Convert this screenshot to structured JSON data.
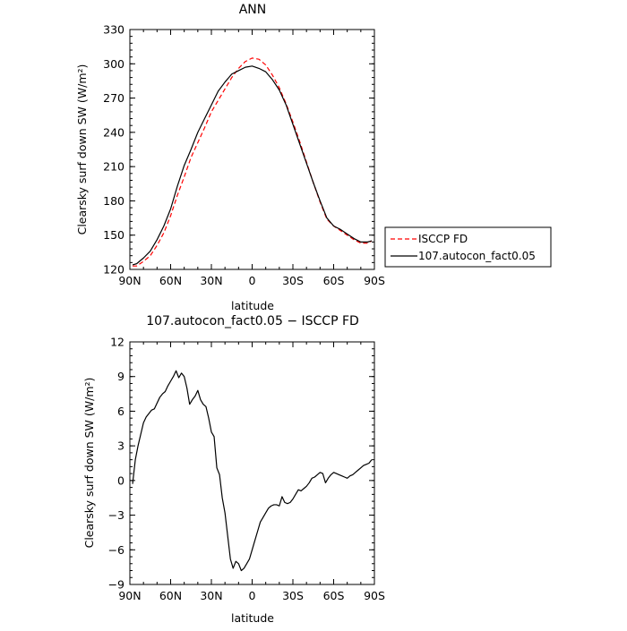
{
  "chart_data": [
    {
      "type": "line",
      "title": "ANN",
      "xlabel": "latitude",
      "ylabel": "Clearsky surf down SW (W/m²)",
      "xlim": [
        90,
        -90
      ],
      "ylim": [
        120,
        330
      ],
      "x_ticks": [
        90,
        60,
        30,
        0,
        -30,
        -60,
        -90
      ],
      "x_tick_labels": [
        "90N",
        "60N",
        "30N",
        "0",
        "30S",
        "60S",
        "90S"
      ],
      "y_ticks": [
        120,
        150,
        180,
        210,
        240,
        270,
        300,
        330
      ],
      "y_tick_labels": [
        "120",
        "150",
        "180",
        "210",
        "240",
        "270",
        "300",
        "330"
      ],
      "legend_position": "outside-right",
      "series": [
        {
          "name": "ISCCP FD",
          "color": "#ff0000",
          "dash": "dashed",
          "x": [
            88,
            85,
            80,
            75,
            70,
            65,
            60,
            55,
            50,
            45,
            40,
            35,
            30,
            25,
            20,
            15,
            10,
            5,
            0,
            -5,
            -10,
            -15,
            -20,
            -25,
            -30,
            -35,
            -40,
            -45,
            -50,
            -55,
            -60,
            -65,
            -70,
            -75,
            -80,
            -85,
            -88
          ],
          "y": [
            123,
            123,
            127,
            132,
            141,
            152,
            167,
            185,
            201,
            218,
            231,
            244,
            258,
            268,
            278,
            288,
            296,
            302,
            305,
            304,
            299,
            290,
            279,
            265,
            249,
            232,
            214,
            196,
            179,
            164,
            158,
            154,
            150,
            146,
            143,
            143,
            145
          ]
        },
        {
          "name": "107.autocon_fact0.05",
          "color": "#000000",
          "dash": "solid",
          "x": [
            88,
            85,
            80,
            75,
            70,
            65,
            60,
            55,
            50,
            45,
            40,
            35,
            30,
            25,
            20,
            15,
            10,
            5,
            0,
            -5,
            -10,
            -15,
            -20,
            -25,
            -30,
            -35,
            -40,
            -45,
            -50,
            -55,
            -60,
            -65,
            -70,
            -75,
            -80,
            -85,
            -88
          ],
          "y": [
            124,
            125,
            130,
            136,
            146,
            158,
            173,
            193,
            211,
            225,
            240,
            252,
            264,
            276,
            284,
            291,
            294,
            297,
            298,
            296,
            293,
            286,
            277,
            264,
            247,
            230,
            213,
            196,
            180,
            165,
            158,
            155,
            151,
            147,
            144,
            144,
            145
          ]
        }
      ]
    },
    {
      "type": "line",
      "title": "107.autocon_fact0.05 − ISCCP FD",
      "xlabel": "latitude",
      "ylabel": "Clearsky surf down SW (W/m²)",
      "xlim": [
        90,
        -90
      ],
      "ylim": [
        -9,
        12
      ],
      "x_ticks": [
        90,
        60,
        30,
        0,
        -30,
        -60,
        -90
      ],
      "x_tick_labels": [
        "90N",
        "60N",
        "30N",
        "0",
        "30S",
        "60S",
        "90S"
      ],
      "y_ticks": [
        -9,
        -6,
        -3,
        0,
        3,
        6,
        9,
        12
      ],
      "y_tick_labels": [
        "−9",
        "−6",
        "−3",
        "0",
        "3",
        "6",
        "9",
        "12"
      ],
      "series": [
        {
          "color": "#000000",
          "dash": "solid",
          "x": [
            88,
            86,
            84,
            82,
            80,
            78,
            76,
            74,
            72,
            70,
            68,
            66,
            64,
            62,
            60,
            58,
            56,
            54,
            52,
            50,
            48,
            46,
            44,
            42,
            40,
            38,
            36,
            34,
            32,
            30,
            28,
            26,
            24,
            22,
            20,
            18,
            16,
            14,
            12,
            10,
            8,
            6,
            4,
            2,
            0,
            -2,
            -4,
            -6,
            -8,
            -10,
            -12,
            -14,
            -16,
            -18,
            -20,
            -22,
            -24,
            -26,
            -28,
            -30,
            -32,
            -34,
            -36,
            -38,
            -40,
            -42,
            -44,
            -46,
            -48,
            -50,
            -52,
            -54,
            -56,
            -58,
            -60,
            -62,
            -64,
            -66,
            -68,
            -70,
            -72,
            -74,
            -76,
            -78,
            -80,
            -82,
            -84,
            -86,
            -88
          ],
          "y": [
            -0.3,
            1.8,
            3.0,
            4.0,
            5.0,
            5.5,
            5.8,
            6.1,
            6.2,
            6.7,
            7.2,
            7.5,
            7.7,
            8.2,
            8.6,
            9.0,
            9.5,
            8.9,
            9.3,
            9.0,
            8.0,
            6.6,
            7.0,
            7.3,
            7.8,
            7.0,
            6.6,
            6.4,
            5.4,
            4.2,
            3.8,
            1.1,
            0.5,
            -1.5,
            -2.8,
            -4.8,
            -6.8,
            -7.6,
            -7.0,
            -7.2,
            -7.8,
            -7.6,
            -7.2,
            -6.8,
            -6.0,
            -5.2,
            -4.4,
            -3.6,
            -3.2,
            -2.8,
            -2.4,
            -2.2,
            -2.1,
            -2.1,
            -2.2,
            -1.4,
            -1.9,
            -2.0,
            -1.9,
            -1.6,
            -1.2,
            -0.8,
            -0.9,
            -0.7,
            -0.5,
            -0.2,
            0.2,
            0.3,
            0.5,
            0.7,
            0.6,
            -0.2,
            0.2,
            0.5,
            0.7,
            0.6,
            0.5,
            0.4,
            0.3,
            0.2,
            0.4,
            0.5,
            0.7,
            0.9,
            1.1,
            1.3,
            1.4,
            1.5,
            1.8
          ]
        }
      ]
    }
  ]
}
